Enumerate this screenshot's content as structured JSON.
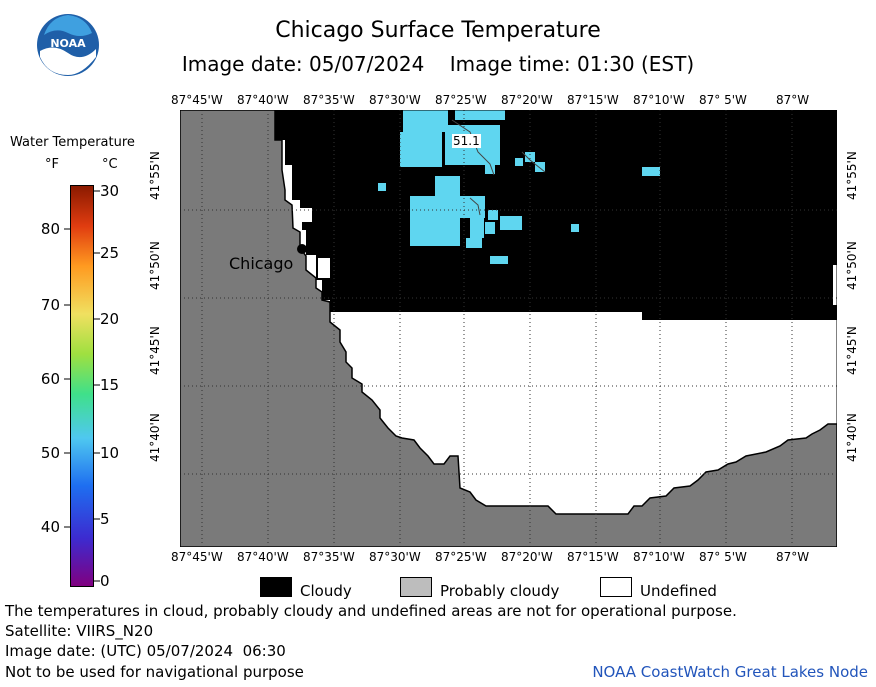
{
  "header": {
    "logo_text": "NOAA",
    "title": "Chicago Surface Temperature",
    "subtitle": "Image date: 05/07/2024    Image time: 01:30 (EST)"
  },
  "colorbar": {
    "title": "Water Temperature",
    "unit_f": "°F",
    "unit_c": "°C",
    "f_ticks": [
      "80",
      "70",
      "60",
      "50",
      "40"
    ],
    "c_ticks": [
      "30",
      "25",
      "20",
      "15",
      "10",
      "5",
      "0"
    ]
  },
  "map": {
    "lon_labels": [
      "87°45'W",
      "87°40'W",
      "87°35'W",
      "87°30'W",
      "87°25'W",
      "87°20'W",
      "87°15'W",
      "87°10'W",
      "87° 5'W",
      "87°W"
    ],
    "lat_labels": [
      "41°55'N",
      "41°50'N",
      "41°45'N",
      "41°40'N"
    ],
    "city_label": "Chicago",
    "temp_label": "51.1",
    "colors": {
      "land": "#7a7a7a",
      "cloudy": "#000000",
      "water": "#5fd6f0",
      "undefined": "#ffffff"
    }
  },
  "legend": {
    "cloudy": "Cloudy",
    "probably_cloudy": "Probably cloudy",
    "undefined": "Undefined"
  },
  "footer": {
    "note": "The temperatures in cloud, probably cloudy and undefined areas are not for operational purpose.",
    "satellite": "Satellite: VIIRS_N20",
    "image_date": "Image date: (UTC) 05/07/2024  06:30",
    "nav": "Not to be used for navigational purpose",
    "credit": "NOAA CoastWatch Great Lakes Node"
  }
}
